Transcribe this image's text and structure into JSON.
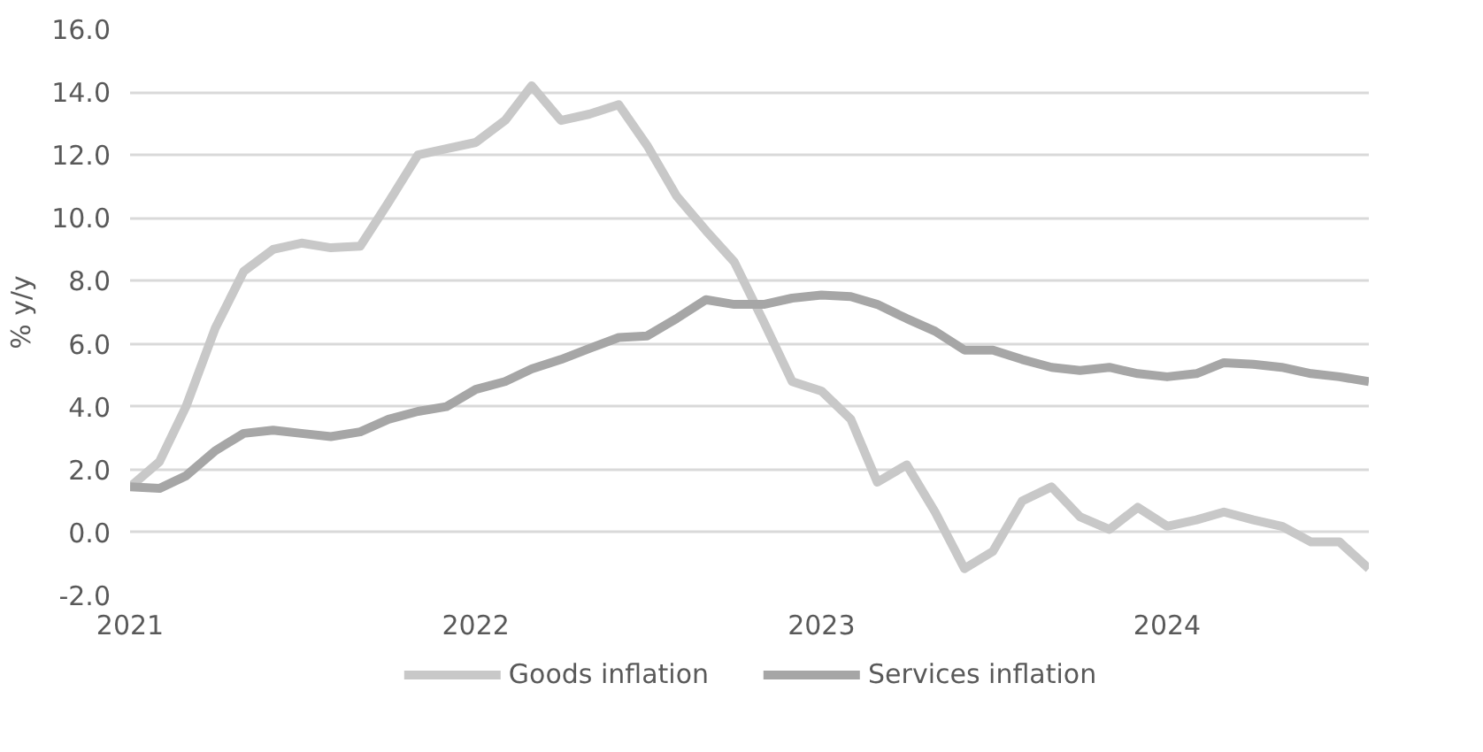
{
  "chart_data": {
    "type": "line",
    "ylabel": "% y/y",
    "x": [
      "2021-01",
      "2021-02",
      "2021-03",
      "2021-04",
      "2021-05",
      "2021-06",
      "2021-07",
      "2021-08",
      "2021-09",
      "2021-10",
      "2021-11",
      "2021-12",
      "2022-01",
      "2022-02",
      "2022-03",
      "2022-04",
      "2022-05",
      "2022-06",
      "2022-07",
      "2022-08",
      "2022-09",
      "2022-10",
      "2022-11",
      "2022-12",
      "2023-01",
      "2023-02",
      "2023-03",
      "2023-04",
      "2023-05",
      "2023-06",
      "2023-07",
      "2023-08",
      "2023-09",
      "2023-10",
      "2023-11",
      "2023-12",
      "2024-01",
      "2024-02",
      "2024-03",
      "2024-04",
      "2024-05",
      "2024-06",
      "2024-07",
      "2024-08"
    ],
    "series": [
      {
        "name": "Goods inflation",
        "color": "#c8c8c8",
        "values": [
          1.45,
          2.25,
          4.0,
          6.5,
          8.3,
          9.0,
          9.2,
          9.05,
          9.1,
          10.5,
          12.0,
          12.2,
          12.4,
          13.1,
          14.2,
          13.1,
          13.3,
          13.6,
          12.3,
          10.7,
          9.6,
          8.6,
          6.7,
          4.8,
          4.5,
          3.6,
          1.6,
          2.15,
          0.65,
          -1.15,
          -0.6,
          1.0,
          1.45,
          0.5,
          0.1,
          0.8,
          0.2,
          0.4,
          0.65,
          0.4,
          0.2,
          -0.3,
          -0.3,
          -1.15
        ]
      },
      {
        "name": "Services inflation",
        "color": "#a6a6a6",
        "values": [
          1.45,
          1.4,
          1.8,
          2.6,
          3.15,
          3.25,
          3.15,
          3.05,
          3.2,
          3.6,
          3.85,
          4.0,
          4.55,
          4.8,
          5.2,
          5.5,
          5.85,
          6.2,
          6.25,
          6.8,
          7.4,
          7.25,
          7.25,
          7.45,
          7.55,
          7.5,
          7.25,
          6.8,
          6.4,
          5.8,
          5.8,
          5.5,
          5.25,
          5.15,
          5.25,
          5.05,
          4.95,
          5.05,
          5.4,
          5.35,
          5.25,
          5.05,
          4.95,
          4.8
        ]
      }
    ],
    "xlim": [
      "2021-01",
      "2024-08"
    ],
    "xticks": [
      {
        "value": "2021-01",
        "label": "2021"
      },
      {
        "value": "2022-01",
        "label": "2022"
      },
      {
        "value": "2023-01",
        "label": "2023"
      },
      {
        "value": "2024-01",
        "label": "2024"
      }
    ],
    "ylim": [
      -2.0,
      16.0
    ],
    "yticks": [
      {
        "value": -2,
        "label": "-2.0"
      },
      {
        "value": 0,
        "label": "0.0"
      },
      {
        "value": 2,
        "label": "2.0"
      },
      {
        "value": 4,
        "label": "4.0"
      },
      {
        "value": 6,
        "label": "6.0"
      },
      {
        "value": 8,
        "label": "8.0"
      },
      {
        "value": 10,
        "label": "10.0"
      },
      {
        "value": 12,
        "label": "12.0"
      },
      {
        "value": 14,
        "label": "14.0"
      },
      {
        "value": 16,
        "label": "16.0"
      }
    ],
    "grid": "y",
    "legend": "bottom",
    "marker": "none",
    "line_style": "solid"
  }
}
